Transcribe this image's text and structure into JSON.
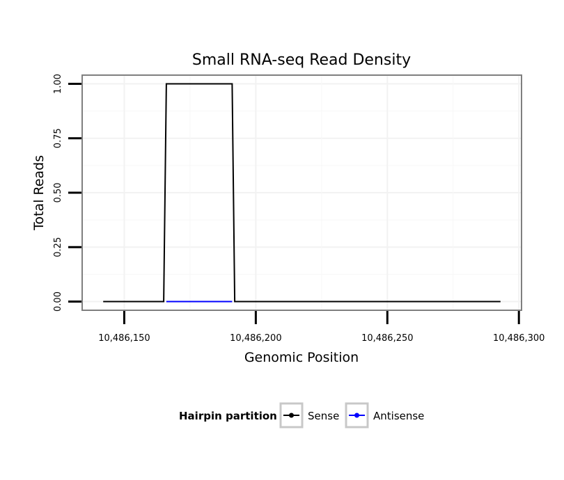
{
  "chart_data": {
    "type": "line",
    "title": "Small RNA-seq Read Density",
    "xlabel": "Genomic Position",
    "ylabel": "Total Reads",
    "xlim": [
      10486134,
      10486301
    ],
    "ylim": [
      -0.04,
      1.04
    ],
    "x_ticks": [
      10486150,
      10486200,
      10486250,
      10486300
    ],
    "x_tick_labels": [
      "10,486,150",
      "10,486,200",
      "10,486,250",
      "10,486,300"
    ],
    "y_ticks": [
      0,
      0.25,
      0.5,
      0.75,
      1.0
    ],
    "y_tick_labels": [
      "0.00",
      "0.25",
      "0.50",
      "0.75",
      "1.00"
    ],
    "grid": true,
    "series": [
      {
        "name": "Sense",
        "color": "#000000",
        "x": [
          10486142,
          10486165,
          10486166,
          10486191,
          10486192,
          10486293
        ],
        "y": [
          0,
          0,
          1,
          1,
          0,
          0
        ]
      },
      {
        "name": "Antisense",
        "color": "#0000ff",
        "x": [
          10486166,
          10486191
        ],
        "y": [
          0,
          0
        ]
      }
    ],
    "legend": {
      "title": "Hairpin partition",
      "position": "bottom",
      "items": [
        {
          "label": "Sense",
          "color": "#000000"
        },
        {
          "label": "Antisense",
          "color": "#0000ff"
        }
      ]
    }
  }
}
